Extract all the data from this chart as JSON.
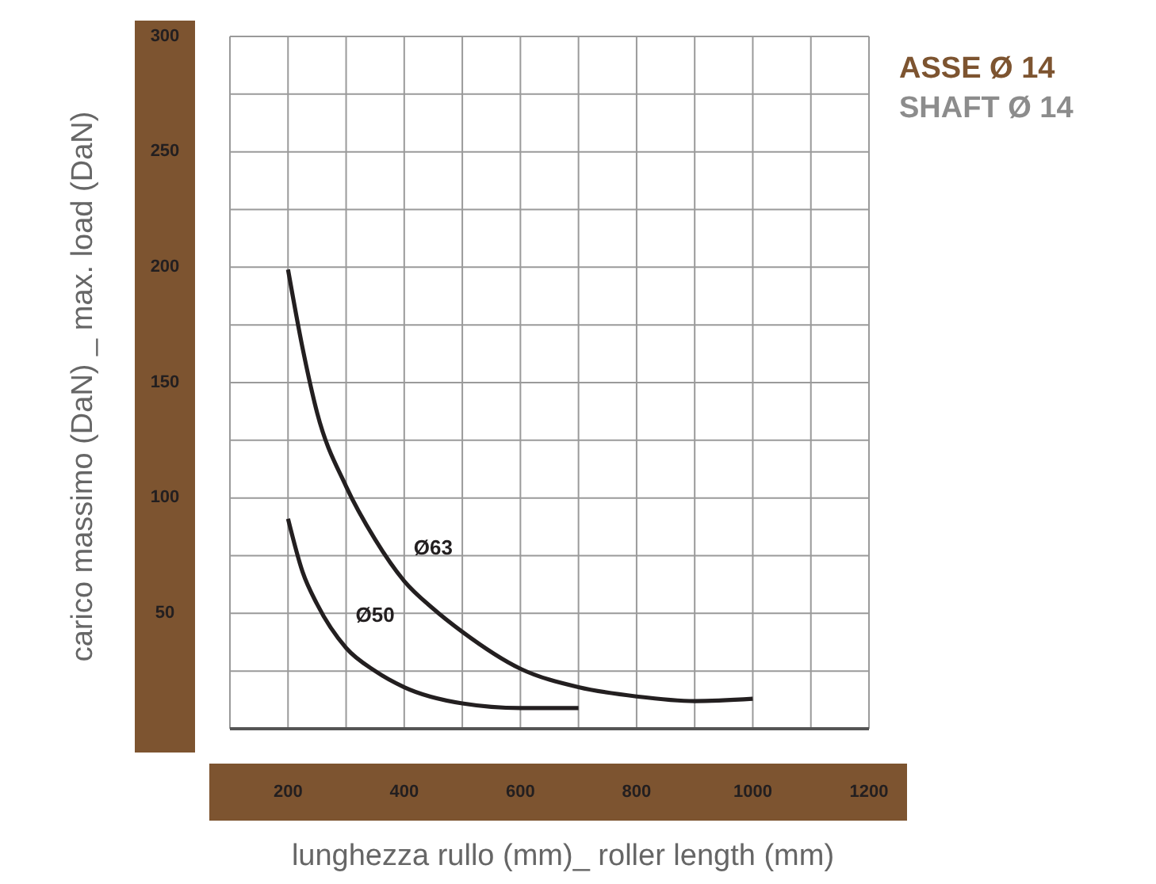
{
  "chart_data": {
    "type": "line",
    "title": "ASSE Ø 14",
    "subtitle": "SHAFT Ø 14",
    "xlabel": "lunghezza rullo (mm)_ roller length (mm)",
    "ylabel": "carico massimo (DaN) _ max. load (DaN)",
    "xlim": [
      100,
      1200
    ],
    "xticks": [
      200,
      400,
      600,
      800,
      1000,
      1200
    ],
    "ylim": [
      0,
      300
    ],
    "yticks": [
      50,
      100,
      150,
      200,
      250,
      300
    ],
    "grid": true,
    "line_style": "solid",
    "series": [
      {
        "name": "Ø63",
        "color": "#231f20",
        "x": [
          200,
          225,
          250,
          300,
          350,
          400,
          450,
          500,
          600,
          700,
          800,
          900,
          1000
        ],
        "values": [
          199,
          165,
          137,
          105,
          82,
          64,
          52,
          42,
          26,
          18,
          14,
          12,
          13
        ]
      },
      {
        "name": "Ø50",
        "color": "#231f20",
        "x": [
          200,
          225,
          250,
          300,
          350,
          400,
          500,
          600,
          700
        ],
        "values": [
          91,
          68,
          54,
          35,
          25,
          18,
          11,
          9,
          9
        ]
      }
    ]
  }
}
